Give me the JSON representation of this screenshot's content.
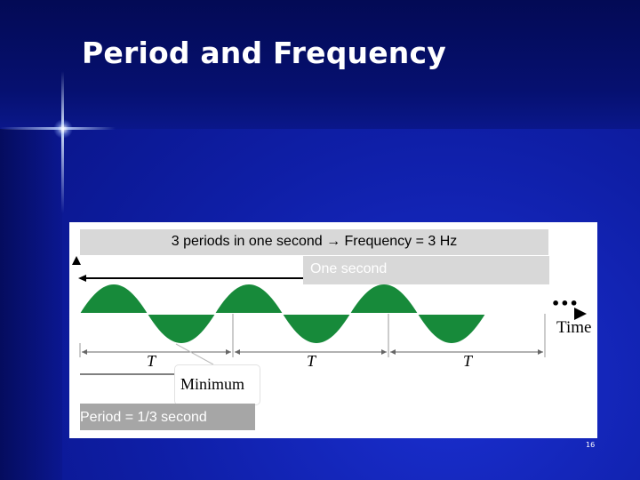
{
  "slide": {
    "title": "Period and Frequency",
    "page_number": "16"
  },
  "figure": {
    "frequency_caption": "3 periods in one second → Frequency = 3  Hz",
    "one_second_label": "One second",
    "period_caption": "Period = 1/3 second",
    "minimum_label": "Minimum",
    "period_symbol": "T",
    "time_axis_label": "Time",
    "continuation": "•••",
    "wave_color": "#178a3a",
    "cycles_shown": 3
  }
}
